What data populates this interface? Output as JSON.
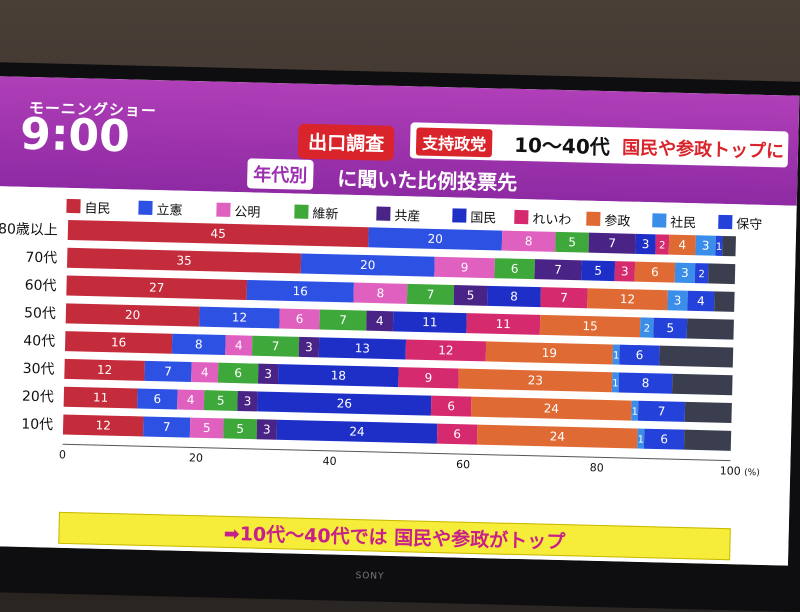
{
  "logo": {
    "show_name": "モーニングショー",
    "clock": "9:00"
  },
  "headline": {
    "exit_poll": "出口調査",
    "support_party": "支持政党",
    "ages": "10〜40代",
    "main": "国民や参政トップに"
  },
  "subtitle": {
    "tag": "年代別",
    "text": "に聞いた比例投票先"
  },
  "banner": "➡10代〜40代では 国民や参政がトップ",
  "tv_brand": "SONY",
  "colors": {
    "band": "#9b30b0",
    "banner": "#f6ec3a",
    "banner_text": "#c8208a",
    "accent_red": "#d8242a"
  },
  "chart_data": {
    "type": "bar",
    "orientation": "horizontal",
    "stacked": true,
    "categories": [
      "80歳以上",
      "70代",
      "60代",
      "50代",
      "40代",
      "30代",
      "20代",
      "10代"
    ],
    "series": [
      {
        "name": "自民",
        "color": "#c42b3b",
        "values": [
          45,
          35,
          27,
          20,
          16,
          12,
          11,
          12
        ]
      },
      {
        "name": "立憲",
        "color": "#2d52e3",
        "values": [
          20,
          20,
          16,
          12,
          8,
          7,
          6,
          7
        ]
      },
      {
        "name": "公明",
        "color": "#e060c0",
        "values": [
          8,
          9,
          8,
          6,
          4,
          4,
          4,
          5
        ]
      },
      {
        "name": "維新",
        "color": "#3ea83a",
        "values": [
          5,
          6,
          7,
          7,
          7,
          6,
          5,
          5
        ]
      },
      {
        "name": "共産",
        "color": "#4a2386",
        "values": [
          7,
          7,
          5,
          4,
          3,
          3,
          3,
          3
        ]
      },
      {
        "name": "国民",
        "color": "#1d2fc6",
        "values": [
          3,
          5,
          8,
          11,
          13,
          18,
          26,
          24
        ]
      },
      {
        "name": "れいわ",
        "color": "#d62a6e",
        "values": [
          2,
          3,
          7,
          11,
          12,
          9,
          6,
          6
        ]
      },
      {
        "name": "参政",
        "color": "#df6a34",
        "values": [
          4,
          6,
          12,
          15,
          19,
          23,
          24,
          24
        ]
      },
      {
        "name": "社民",
        "color": "#3a8de8",
        "values": [
          3,
          3,
          3,
          2,
          1,
          1,
          1,
          1
        ]
      },
      {
        "name": "保守",
        "color": "#2442d9",
        "values": [
          1,
          2,
          4,
          5,
          6,
          8,
          7,
          6
        ]
      },
      {
        "name": "",
        "color": "#3a3e4e",
        "values": [
          2,
          4,
          3,
          7,
          11,
          9,
          7,
          7
        ]
      }
    ],
    "xticks": [
      0,
      20,
      40,
      60,
      80,
      100
    ],
    "xunit": "(%)",
    "xlim": [
      0,
      100
    ],
    "grid": false,
    "legend": "top"
  }
}
